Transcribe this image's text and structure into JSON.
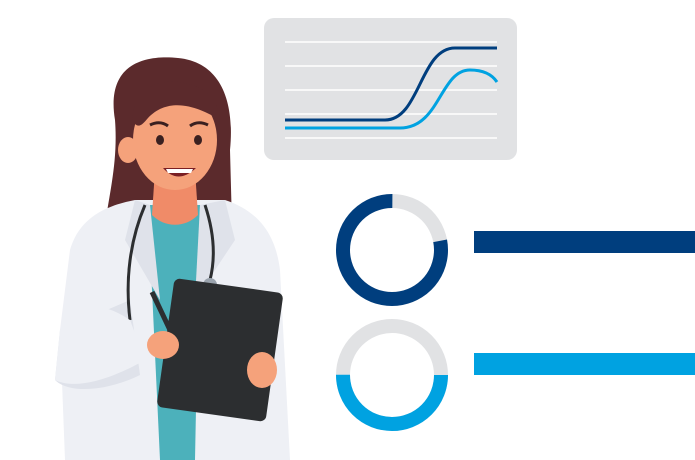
{
  "colors": {
    "navy": "#003e7e",
    "light_blue": "#00a2e1",
    "card_bg": "#e1e2e4",
    "track_gray": "#e1e2e4",
    "hair": "#5b2a2c",
    "skin": "#f5a27b",
    "coat": "#eef0f5",
    "scrubs": "#4cb1bb",
    "clipboard": "#2c2e30"
  },
  "donuts": [
    {
      "name": "donut-navy",
      "fraction": 0.78,
      "color_key": "navy"
    },
    {
      "name": "donut-light-blue",
      "fraction": 0.5,
      "color_key": "light_blue"
    }
  ],
  "chart_lines": [
    "navy",
    "light_blue"
  ]
}
